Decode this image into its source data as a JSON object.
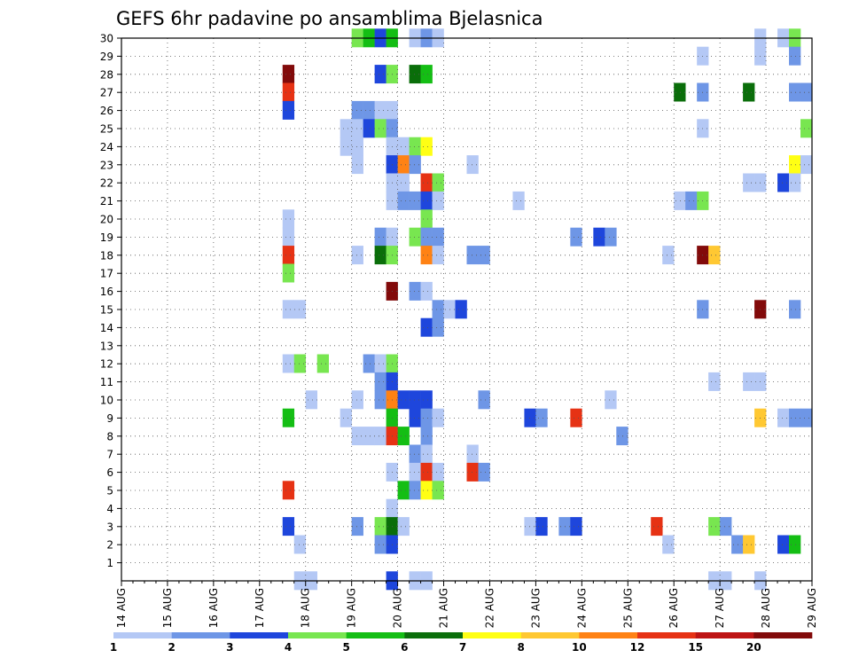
{
  "chart_data": {
    "type": "heatmap",
    "title": "GEFS 6hr padavine po ansamblima Bjelasnica",
    "x_tick_labels": [
      "14 AUG",
      "15 AUG",
      "16 AUG",
      "17 AUG",
      "18 AUG",
      "19 AUG",
      "20 AUG",
      "21 AUG",
      "22 AUG",
      "23 AUG",
      "24 AUG",
      "25 AUG",
      "26 AUG",
      "27 AUG",
      "28 AUG",
      "29 AUG"
    ],
    "y_tick_labels": [
      "1",
      "2",
      "3",
      "4",
      "5",
      "6",
      "7",
      "8",
      "9",
      "10",
      "11",
      "12",
      "13",
      "14",
      "15",
      "16",
      "17",
      "18",
      "19",
      "20",
      "21",
      "22",
      "23",
      "24",
      "25",
      "26",
      "27",
      "28",
      "29",
      "30"
    ],
    "xlim": [
      0,
      60
    ],
    "ylim": [
      0,
      30
    ],
    "grid": true,
    "legend": {
      "placement": "bottom",
      "labels": [
        "1",
        "2",
        "3",
        "4",
        "5",
        "6",
        "7",
        "8",
        "10",
        "12",
        "15",
        "20"
      ],
      "colors": [
        "#b4c8f5",
        "#6e96e6",
        "#1e46dc",
        "#78e650",
        "#14be14",
        "#0a6e0a",
        "#ffff14",
        "#ffc832",
        "#ff8214",
        "#e63214",
        "#be1414",
        "#820a0a"
      ]
    },
    "cells": [
      [
        20,
        30,
        "#78e650"
      ],
      [
        21,
        30,
        "#14be14"
      ],
      [
        22,
        30,
        "#1e46dc"
      ],
      [
        23,
        30,
        "#14be14"
      ],
      [
        25,
        30,
        "#b4c8f5"
      ],
      [
        26,
        30,
        "#6e96e6"
      ],
      [
        27,
        30,
        "#b4c8f5"
      ],
      [
        55,
        30,
        "#b4c8f5"
      ],
      [
        57,
        30,
        "#b4c8f5"
      ],
      [
        58,
        30,
        "#78e650"
      ],
      [
        50,
        29,
        "#b4c8f5"
      ],
      [
        55,
        29,
        "#b4c8f5"
      ],
      [
        58,
        29,
        "#6e96e6"
      ],
      [
        14,
        28,
        "#820a0a"
      ],
      [
        22,
        28,
        "#1e46dc"
      ],
      [
        23,
        28,
        "#78e650"
      ],
      [
        25,
        28,
        "#0a6e0a"
      ],
      [
        26,
        28,
        "#14be14"
      ],
      [
        14,
        27,
        "#e63214"
      ],
      [
        48,
        27,
        "#0a6e0a"
      ],
      [
        50,
        27,
        "#6e96e6"
      ],
      [
        54,
        27,
        "#0a6e0a"
      ],
      [
        58,
        27,
        "#6e96e6"
      ],
      [
        59,
        27,
        "#6e96e6"
      ],
      [
        14,
        26,
        "#1e46dc"
      ],
      [
        20,
        26,
        "#6e96e6"
      ],
      [
        21,
        26,
        "#6e96e6"
      ],
      [
        22,
        26,
        "#b4c8f5"
      ],
      [
        23,
        26,
        "#b4c8f5"
      ],
      [
        19,
        25,
        "#b4c8f5"
      ],
      [
        20,
        25,
        "#b4c8f5"
      ],
      [
        21,
        25,
        "#1e46dc"
      ],
      [
        22,
        25,
        "#78e650"
      ],
      [
        23,
        25,
        "#6e96e6"
      ],
      [
        50,
        25,
        "#b4c8f5"
      ],
      [
        59,
        25,
        "#78e650"
      ],
      [
        19,
        24,
        "#b4c8f5"
      ],
      [
        20,
        24,
        "#b4c8f5"
      ],
      [
        23,
        24,
        "#b4c8f5"
      ],
      [
        24,
        24,
        "#b4c8f5"
      ],
      [
        25,
        24,
        "#78e650"
      ],
      [
        26,
        24,
        "#ffff14"
      ],
      [
        20,
        23,
        "#b4c8f5"
      ],
      [
        23,
        23,
        "#1e46dc"
      ],
      [
        24,
        23,
        "#ff8214"
      ],
      [
        25,
        23,
        "#6e96e6"
      ],
      [
        30,
        23,
        "#b4c8f5"
      ],
      [
        58,
        23,
        "#ffff14"
      ],
      [
        59,
        23,
        "#b4c8f5"
      ],
      [
        23,
        22,
        "#b4c8f5"
      ],
      [
        24,
        22,
        "#b4c8f5"
      ],
      [
        26,
        22,
        "#e63214"
      ],
      [
        27,
        22,
        "#78e650"
      ],
      [
        54,
        22,
        "#b4c8f5"
      ],
      [
        55,
        22,
        "#b4c8f5"
      ],
      [
        57,
        22,
        "#1e46dc"
      ],
      [
        58,
        22,
        "#b4c8f5"
      ],
      [
        23,
        21,
        "#b4c8f5"
      ],
      [
        24,
        21,
        "#6e96e6"
      ],
      [
        25,
        21,
        "#6e96e6"
      ],
      [
        26,
        21,
        "#1e46dc"
      ],
      [
        27,
        21,
        "#b4c8f5"
      ],
      [
        34,
        21,
        "#b4c8f5"
      ],
      [
        48,
        21,
        "#b4c8f5"
      ],
      [
        49,
        21,
        "#6e96e6"
      ],
      [
        50,
        21,
        "#78e650"
      ],
      [
        14,
        20,
        "#b4c8f5"
      ],
      [
        26,
        20,
        "#78e650"
      ],
      [
        14,
        19,
        "#b4c8f5"
      ],
      [
        22,
        19,
        "#6e96e6"
      ],
      [
        23,
        19,
        "#b4c8f5"
      ],
      [
        25,
        19,
        "#78e650"
      ],
      [
        26,
        19,
        "#6e96e6"
      ],
      [
        27,
        19,
        "#6e96e6"
      ],
      [
        39,
        19,
        "#6e96e6"
      ],
      [
        41,
        19,
        "#1e46dc"
      ],
      [
        42,
        19,
        "#6e96e6"
      ],
      [
        14,
        18,
        "#e63214"
      ],
      [
        20,
        18,
        "#b4c8f5"
      ],
      [
        22,
        18,
        "#0a6e0a"
      ],
      [
        23,
        18,
        "#78e650"
      ],
      [
        26,
        18,
        "#ff8214"
      ],
      [
        27,
        18,
        "#b4c8f5"
      ],
      [
        30,
        18,
        "#6e96e6"
      ],
      [
        31,
        18,
        "#6e96e6"
      ],
      [
        47,
        18,
        "#b4c8f5"
      ],
      [
        50,
        18,
        "#820a0a"
      ],
      [
        51,
        18,
        "#ffc832"
      ],
      [
        14,
        17,
        "#78e650"
      ],
      [
        23,
        16,
        "#820a0a"
      ],
      [
        25,
        16,
        "#6e96e6"
      ],
      [
        26,
        16,
        "#b4c8f5"
      ],
      [
        14,
        15,
        "#b4c8f5"
      ],
      [
        15,
        15,
        "#b4c8f5"
      ],
      [
        27,
        15,
        "#6e96e6"
      ],
      [
        28,
        15,
        "#b4c8f5"
      ],
      [
        29,
        15,
        "#1e46dc"
      ],
      [
        50,
        15,
        "#6e96e6"
      ],
      [
        55,
        15,
        "#820a0a"
      ],
      [
        58,
        15,
        "#6e96e6"
      ],
      [
        26,
        14,
        "#1e46dc"
      ],
      [
        27,
        14,
        "#6e96e6"
      ],
      [
        14,
        12,
        "#b4c8f5"
      ],
      [
        15,
        12,
        "#78e650"
      ],
      [
        17,
        12,
        "#78e650"
      ],
      [
        21,
        12,
        "#6e96e6"
      ],
      [
        22,
        12,
        "#b4c8f5"
      ],
      [
        23,
        12,
        "#78e650"
      ],
      [
        22,
        11,
        "#6e96e6"
      ],
      [
        23,
        11,
        "#1e46dc"
      ],
      [
        51,
        11,
        "#b4c8f5"
      ],
      [
        54,
        11,
        "#b4c8f5"
      ],
      [
        55,
        11,
        "#b4c8f5"
      ],
      [
        16,
        10,
        "#b4c8f5"
      ],
      [
        20,
        10,
        "#b4c8f5"
      ],
      [
        22,
        10,
        "#6e96e6"
      ],
      [
        23,
        10,
        "#ff8214"
      ],
      [
        24,
        10,
        "#1e46dc"
      ],
      [
        25,
        10,
        "#1e46dc"
      ],
      [
        26,
        10,
        "#1e46dc"
      ],
      [
        31,
        10,
        "#6e96e6"
      ],
      [
        42,
        10,
        "#b4c8f5"
      ],
      [
        14,
        9,
        "#14be14"
      ],
      [
        19,
        9,
        "#b4c8f5"
      ],
      [
        23,
        9,
        "#14be14"
      ],
      [
        25,
        9,
        "#1e46dc"
      ],
      [
        26,
        9,
        "#6e96e6"
      ],
      [
        27,
        9,
        "#b4c8f5"
      ],
      [
        35,
        9,
        "#1e46dc"
      ],
      [
        36,
        9,
        "#6e96e6"
      ],
      [
        39,
        9,
        "#e63214"
      ],
      [
        55,
        9,
        "#ffc832"
      ],
      [
        57,
        9,
        "#b4c8f5"
      ],
      [
        58,
        9,
        "#6e96e6"
      ],
      [
        59,
        9,
        "#6e96e6"
      ],
      [
        20,
        8,
        "#b4c8f5"
      ],
      [
        21,
        8,
        "#b4c8f5"
      ],
      [
        22,
        8,
        "#b4c8f5"
      ],
      [
        23,
        8,
        "#e63214"
      ],
      [
        24,
        8,
        "#14be14"
      ],
      [
        26,
        8,
        "#6e96e6"
      ],
      [
        43,
        8,
        "#6e96e6"
      ],
      [
        25,
        7,
        "#6e96e6"
      ],
      [
        26,
        7,
        "#b4c8f5"
      ],
      [
        30,
        7,
        "#b4c8f5"
      ],
      [
        23,
        6,
        "#b4c8f5"
      ],
      [
        25,
        6,
        "#b4c8f5"
      ],
      [
        26,
        6,
        "#e63214"
      ],
      [
        27,
        6,
        "#b4c8f5"
      ],
      [
        30,
        6,
        "#e63214"
      ],
      [
        31,
        6,
        "#6e96e6"
      ],
      [
        14,
        5,
        "#e63214"
      ],
      [
        24,
        5,
        "#14be14"
      ],
      [
        25,
        5,
        "#6e96e6"
      ],
      [
        26,
        5,
        "#ffff14"
      ],
      [
        27,
        5,
        "#78e650"
      ],
      [
        23,
        4,
        "#b4c8f5"
      ],
      [
        14,
        3,
        "#1e46dc"
      ],
      [
        20,
        3,
        "#6e96e6"
      ],
      [
        22,
        3,
        "#78e650"
      ],
      [
        23,
        3,
        "#0a6e0a"
      ],
      [
        24,
        3,
        "#b4c8f5"
      ],
      [
        35,
        3,
        "#b4c8f5"
      ],
      [
        36,
        3,
        "#1e46dc"
      ],
      [
        38,
        3,
        "#6e96e6"
      ],
      [
        39,
        3,
        "#1e46dc"
      ],
      [
        46,
        3,
        "#e63214"
      ],
      [
        51,
        3,
        "#78e650"
      ],
      [
        52,
        3,
        "#6e96e6"
      ],
      [
        15,
        2,
        "#b4c8f5"
      ],
      [
        22,
        2,
        "#6e96e6"
      ],
      [
        23,
        2,
        "#1e46dc"
      ],
      [
        47,
        2,
        "#b4c8f5"
      ],
      [
        53,
        2,
        "#6e96e6"
      ],
      [
        54,
        2,
        "#ffc832"
      ],
      [
        57,
        2,
        "#1e46dc"
      ],
      [
        58,
        2,
        "#14be14"
      ],
      [
        15,
        0,
        "#b4c8f5"
      ],
      [
        16,
        0,
        "#b4c8f5"
      ],
      [
        23,
        0,
        "#1e46dc"
      ],
      [
        25,
        0,
        "#b4c8f5"
      ],
      [
        26,
        0,
        "#b4c8f5"
      ],
      [
        51,
        0,
        "#b4c8f5"
      ],
      [
        52,
        0,
        "#b4c8f5"
      ],
      [
        55,
        0,
        "#b4c8f5"
      ]
    ]
  }
}
